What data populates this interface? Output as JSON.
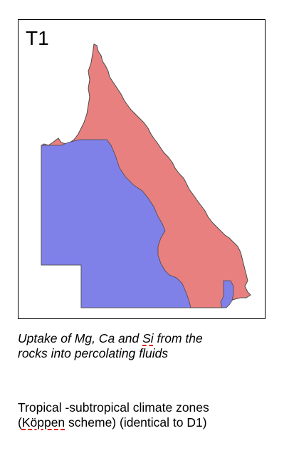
{
  "map": {
    "panel_label": "T1",
    "colors": {
      "red_zone": "#e8807f",
      "blue_zone": "#7f80e8",
      "outline": "#4a4a4a",
      "frame": "#000000"
    }
  },
  "captions": {
    "line1_a": "Uptake of Mg, Ca and ",
    "line1_b": "Si",
    "line1_c": " from the",
    "line2": "rocks into percolating fluids",
    "zones_line1": "Tropical -subtropical climate zones",
    "zones_line2_a": "(",
    "zones_line2_b": "Köppen",
    "zones_line2_c": " scheme) (identical to D1)"
  }
}
